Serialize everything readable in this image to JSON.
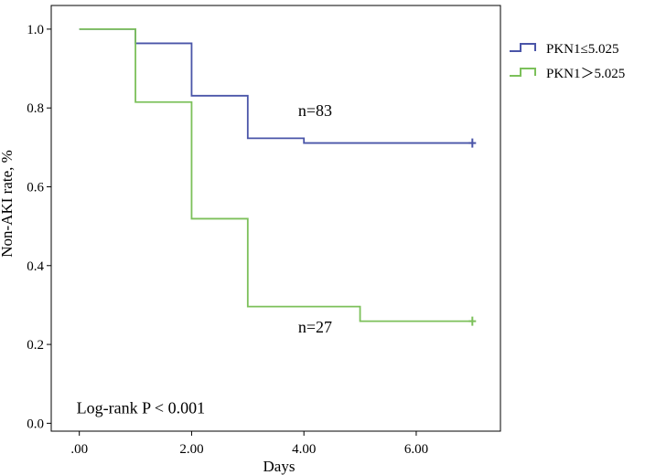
{
  "chart_data": {
    "type": "line",
    "subtype": "kaplan-meier",
    "title": "",
    "xlabel": "Days",
    "ylabel": "Non-AKI rate, %",
    "xlim": [
      -0.5,
      7.5
    ],
    "ylim": [
      -0.02,
      1.06
    ],
    "x_ticks": [
      0,
      2,
      4,
      6
    ],
    "x_tick_labels": [
      ".00",
      "2.00",
      "4.00",
      "6.00"
    ],
    "y_ticks": [
      0,
      0.2,
      0.4,
      0.6,
      0.8,
      1.0
    ],
    "y_tick_labels": [
      "0.0",
      "0.2",
      "0.4",
      "0.6",
      "0.8",
      "1.0"
    ],
    "grid": false,
    "legend_position": "outside-top-right",
    "series": [
      {
        "name": "PKN1≤5.025",
        "legend_label": "PKN1≤5.025",
        "color": "#4a55a8",
        "steps": [
          [
            0,
            1.0
          ],
          [
            1,
            0.964
          ],
          [
            2,
            0.831
          ],
          [
            3,
            0.723
          ],
          [
            4,
            0.711
          ],
          [
            7,
            0.711
          ]
        ],
        "censored": [
          [
            7,
            0.711
          ]
        ],
        "n_label": "n=83",
        "n_label_at": [
          4.2,
          0.78
        ]
      },
      {
        "name": "PKN1>5.025",
        "legend_label": "PKN1＞5.025",
        "color": "#7cc05a",
        "steps": [
          [
            0,
            1.0
          ],
          [
            1,
            0.815
          ],
          [
            2,
            0.519
          ],
          [
            3,
            0.296
          ],
          [
            5,
            0.259
          ],
          [
            7,
            0.259
          ]
        ],
        "censored": [
          [
            7,
            0.259
          ]
        ],
        "n_label": "n=27",
        "n_label_at": [
          4.2,
          0.23
        ]
      }
    ],
    "annotations": [
      {
        "text": "Log-rank P < 0.001",
        "at": [
          -0.05,
          0.025
        ]
      }
    ]
  }
}
